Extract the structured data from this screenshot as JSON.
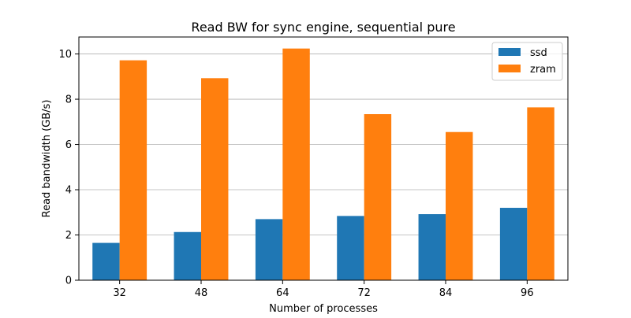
{
  "chart_data": {
    "type": "bar",
    "title": "Read BW for sync engine, sequential pure",
    "xlabel": "Number of processes",
    "ylabel": "Read bandwidth (GB/s)",
    "categories": [
      "32",
      "48",
      "64",
      "72",
      "84",
      "96"
    ],
    "series": [
      {
        "name": "ssd",
        "color": "#1f77b4",
        "values": [
          1.65,
          2.13,
          2.7,
          2.84,
          2.92,
          3.2
        ]
      },
      {
        "name": "zram",
        "color": "#ff7f0e",
        "values": [
          9.72,
          8.93,
          10.24,
          7.34,
          6.55,
          7.64
        ]
      }
    ],
    "ylim": [
      0,
      10.75
    ],
    "yticks": [
      0,
      2,
      4,
      6,
      8,
      10
    ],
    "grid": "y",
    "legend_position": "top-right"
  }
}
